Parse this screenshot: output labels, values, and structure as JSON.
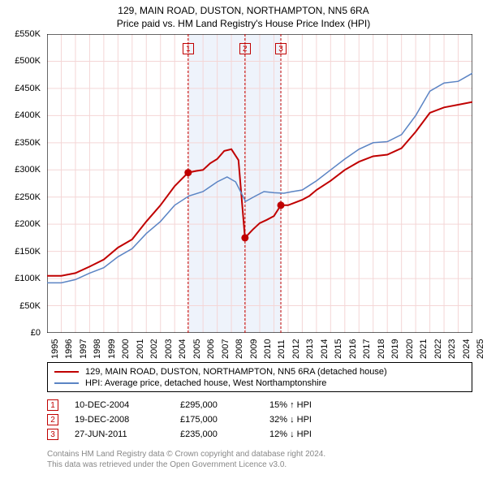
{
  "title": "129, MAIN ROAD, DUSTON, NORTHAMPTON, NN5 6RA",
  "subtitle": "Price paid vs. HM Land Registry's House Price Index (HPI)",
  "chart": {
    "type": "line",
    "background_color": "#ffffff",
    "grid_color": "#f4d6d6",
    "axis_color": "#000000",
    "x_start_year": 1995,
    "x_end_year": 2025,
    "ylim": [
      0,
      550000
    ],
    "ytick_step": 50000,
    "ytick_labels": [
      "£0",
      "£50K",
      "£100K",
      "£150K",
      "£200K",
      "£250K",
      "£300K",
      "£350K",
      "£400K",
      "£450K",
      "£500K",
      "£550K"
    ],
    "xtick_labels": [
      "1995",
      "1996",
      "1997",
      "1998",
      "1999",
      "2000",
      "2001",
      "2002",
      "2003",
      "2004",
      "2005",
      "2006",
      "2007",
      "2008",
      "2009",
      "2010",
      "2011",
      "2012",
      "2013",
      "2014",
      "2015",
      "2016",
      "2017",
      "2018",
      "2019",
      "2020",
      "2021",
      "2022",
      "2023",
      "2024",
      "2025"
    ],
    "highlight_band": {
      "from_year": 2005.0,
      "to_year": 2011.5,
      "fill": "#eef3fb"
    },
    "series": [
      {
        "id": "property",
        "label": "129, MAIN ROAD, DUSTON, NORTHAMPTON, NN5 6RA (detached house)",
        "color": "#c00000",
        "line_width": 2,
        "points": [
          [
            1995.0,
            105000
          ],
          [
            1996.0,
            105000
          ],
          [
            1997.0,
            110000
          ],
          [
            1998.0,
            122000
          ],
          [
            1999.0,
            135000
          ],
          [
            2000.0,
            157000
          ],
          [
            2001.0,
            172000
          ],
          [
            2002.0,
            205000
          ],
          [
            2003.0,
            235000
          ],
          [
            2004.0,
            270000
          ],
          [
            2004.95,
            295000
          ],
          [
            2005.5,
            298000
          ],
          [
            2006.0,
            300000
          ],
          [
            2006.5,
            312000
          ],
          [
            2007.0,
            320000
          ],
          [
            2007.5,
            335000
          ],
          [
            2008.0,
            338000
          ],
          [
            2008.5,
            318000
          ],
          [
            2008.96,
            175000
          ],
          [
            2009.5,
            190000
          ],
          [
            2010.0,
            202000
          ],
          [
            2010.5,
            208000
          ],
          [
            2011.0,
            215000
          ],
          [
            2011.49,
            235000
          ],
          [
            2012.0,
            235000
          ],
          [
            2012.5,
            240000
          ],
          [
            2013.0,
            245000
          ],
          [
            2013.5,
            252000
          ],
          [
            2014.0,
            263000
          ],
          [
            2015.0,
            280000
          ],
          [
            2016.0,
            300000
          ],
          [
            2017.0,
            315000
          ],
          [
            2018.0,
            325000
          ],
          [
            2019.0,
            328000
          ],
          [
            2020.0,
            340000
          ],
          [
            2021.0,
            370000
          ],
          [
            2022.0,
            405000
          ],
          [
            2023.0,
            415000
          ],
          [
            2024.0,
            420000
          ],
          [
            2025.0,
            425000
          ]
        ]
      },
      {
        "id": "hpi",
        "label": "HPI: Average price, detached house, West Northamptonshire",
        "color": "#5b84c4",
        "line_width": 1.5,
        "points": [
          [
            1995.0,
            92000
          ],
          [
            1996.0,
            92000
          ],
          [
            1997.0,
            98000
          ],
          [
            1998.0,
            110000
          ],
          [
            1999.0,
            120000
          ],
          [
            2000.0,
            140000
          ],
          [
            2001.0,
            155000
          ],
          [
            2002.0,
            183000
          ],
          [
            2003.0,
            205000
          ],
          [
            2004.0,
            235000
          ],
          [
            2005.0,
            252000
          ],
          [
            2006.0,
            260000
          ],
          [
            2007.0,
            278000
          ],
          [
            2007.7,
            287000
          ],
          [
            2008.3,
            278000
          ],
          [
            2009.0,
            242000
          ],
          [
            2009.7,
            252000
          ],
          [
            2010.3,
            260000
          ],
          [
            2011.0,
            258000
          ],
          [
            2011.7,
            257000
          ],
          [
            2012.3,
            260000
          ],
          [
            2013.0,
            263000
          ],
          [
            2014.0,
            280000
          ],
          [
            2015.0,
            300000
          ],
          [
            2016.0,
            320000
          ],
          [
            2017.0,
            338000
          ],
          [
            2018.0,
            350000
          ],
          [
            2019.0,
            352000
          ],
          [
            2020.0,
            365000
          ],
          [
            2021.0,
            400000
          ],
          [
            2022.0,
            445000
          ],
          [
            2023.0,
            460000
          ],
          [
            2024.0,
            463000
          ],
          [
            2025.0,
            478000
          ]
        ]
      }
    ],
    "sale_markers": [
      {
        "n": "1",
        "year": 2004.95,
        "value": 295000
      },
      {
        "n": "2",
        "year": 2008.96,
        "value": 175000
      },
      {
        "n": "3",
        "year": 2011.49,
        "value": 235000
      }
    ]
  },
  "legend": {
    "items": [
      {
        "color": "#c00000",
        "label": "129, MAIN ROAD, DUSTON, NORTHAMPTON, NN5 6RA (detached house)"
      },
      {
        "color": "#5b84c4",
        "label": "HPI: Average price, detached house, West Northamptonshire"
      }
    ]
  },
  "events": [
    {
      "n": "1",
      "date": "10-DEC-2004",
      "price": "£295,000",
      "delta": "15% ↑ HPI"
    },
    {
      "n": "2",
      "date": "19-DEC-2008",
      "price": "£175,000",
      "delta": "32% ↓ HPI"
    },
    {
      "n": "3",
      "date": "27-JUN-2011",
      "price": "£235,000",
      "delta": "12% ↓ HPI"
    }
  ],
  "footnote_line1": "Contains HM Land Registry data © Crown copyright and database right 2024.",
  "footnote_line2": "This data was retrieved under the Open Government Licence v3.0."
}
